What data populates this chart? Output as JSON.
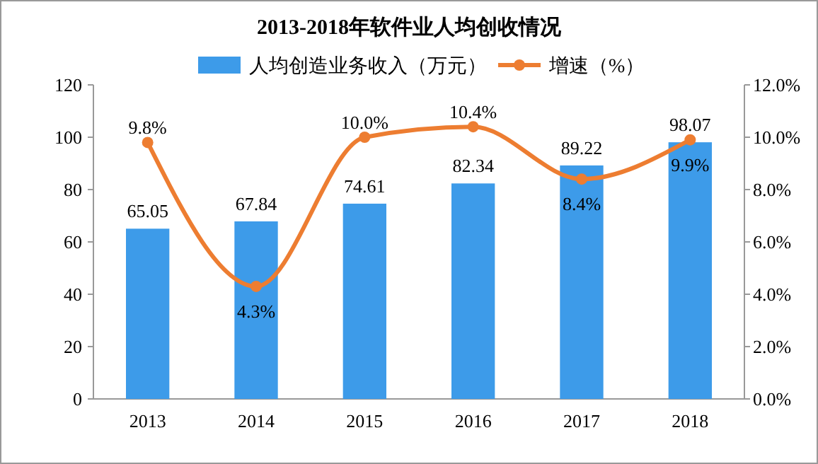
{
  "chart_data": {
    "type": "bar",
    "title": "2013-2018年软件业人均创收情况",
    "categories": [
      "2013",
      "2014",
      "2015",
      "2016",
      "2017",
      "2018"
    ],
    "series": [
      {
        "name": "人均创造业务收入（万元）",
        "color": "#3d9be9",
        "values": [
          65.05,
          67.84,
          74.61,
          82.34,
          89.22,
          98.07
        ],
        "value_labels": [
          "65.05",
          "67.84",
          "74.61",
          "82.34",
          "89.22",
          "98.07"
        ]
      },
      {
        "name": "增速（%）",
        "type": "line",
        "axis": "y2",
        "color": "#ed7d31",
        "marker": "circle",
        "values": [
          9.8,
          4.3,
          10.0,
          10.4,
          8.4,
          9.9
        ],
        "value_labels": [
          "9.8%",
          "4.3%",
          "10.0%",
          "10.4%",
          "8.4%",
          "9.9%"
        ]
      }
    ],
    "ylim": [
      0,
      120
    ],
    "yticks": [
      0,
      20,
      40,
      60,
      80,
      100,
      120
    ],
    "y2lim": [
      0,
      12
    ],
    "y2ticks": [
      {
        "value": 0,
        "label": "0.0%"
      },
      {
        "value": 2,
        "label": "2.0%"
      },
      {
        "value": 4,
        "label": "4.0%"
      },
      {
        "value": 6,
        "label": "6.0%"
      },
      {
        "value": 8,
        "label": "8.0%"
      },
      {
        "value": 10,
        "label": "10.0%"
      },
      {
        "value": 12,
        "label": "12.0%"
      }
    ],
    "legend": "top",
    "grid": false
  }
}
